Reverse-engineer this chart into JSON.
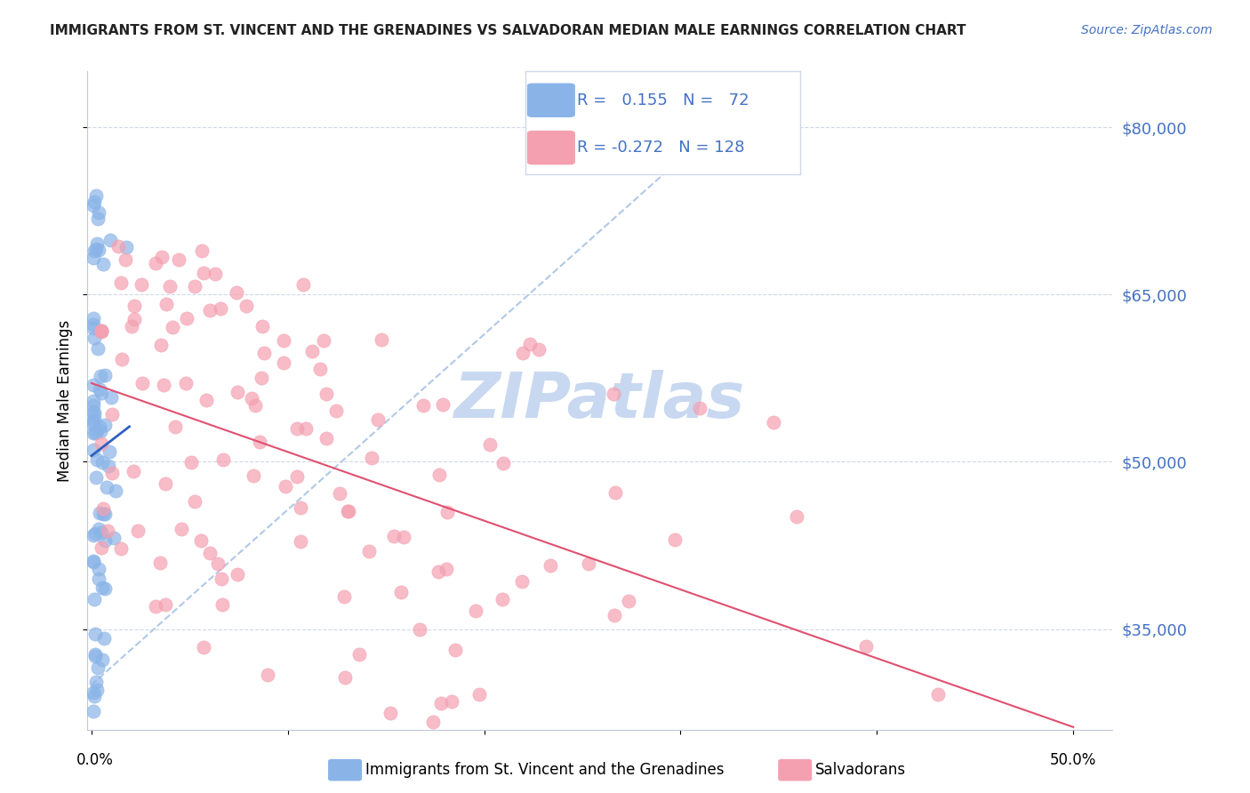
{
  "title": "IMMIGRANTS FROM ST. VINCENT AND THE GRENADINES VS SALVADORAN MEDIAN MALE EARNINGS CORRELATION CHART",
  "source": "Source: ZipAtlas.com",
  "ylabel": "Median Male Earnings",
  "ytick_labels": [
    "$35,000",
    "$50,000",
    "$65,000",
    "$80,000"
  ],
  "ytick_values": [
    35000,
    50000,
    65000,
    80000
  ],
  "ylim": [
    26000,
    85000
  ],
  "xlim": [
    -0.002,
    0.52
  ],
  "legend_r_blue": "0.155",
  "legend_n_blue": "72",
  "legend_r_pink": "-0.272",
  "legend_n_pink": "128",
  "blue_color": "#8ab4e8",
  "pink_color": "#f4a0b0",
  "blue_line_color": "#3060c0",
  "pink_line_color": "#e05070",
  "diagonal_color": "#b0c8e8",
  "watermark": "ZIPatlas",
  "watermark_color": "#c8d8f0",
  "title_color": "#222222",
  "source_color": "#4472c4",
  "tick_label_color": "#4472c4",
  "grid_color": "#d0d8e8",
  "spine_color": "#c0c8d8"
}
